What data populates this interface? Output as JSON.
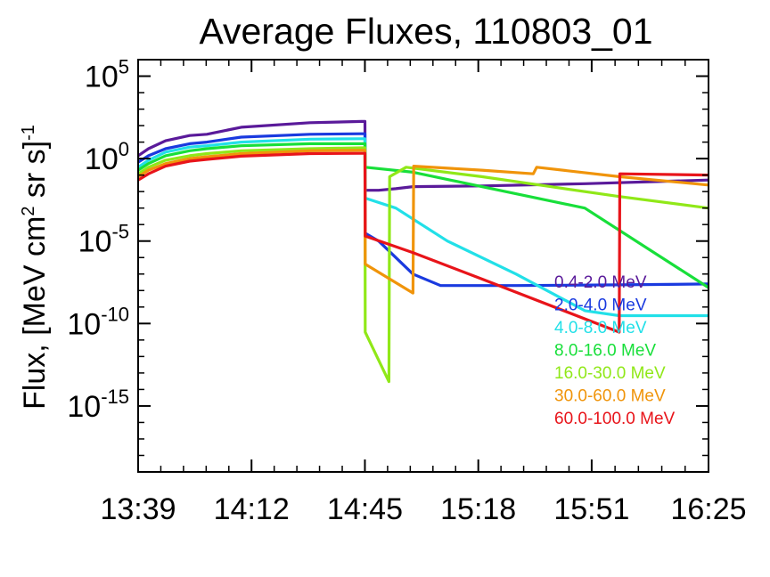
{
  "chart_data": {
    "type": "line",
    "title": "Average Fluxes, 110803_01",
    "ylabel": "Flux, [MeV cm² sr s]⁻¹",
    "ylabel_parts": {
      "main": "Flux, [MeV cm",
      "sup1": "2",
      "mid": " sr s]",
      "sup2": "-1"
    },
    "y_scale": "log",
    "ylim": [
      1e-19,
      1000000.0
    ],
    "x_ticks": [
      {
        "label": "13:39",
        "t": 0
      },
      {
        "label": "14:12",
        "t": 33
      },
      {
        "label": "14:45",
        "t": 66
      },
      {
        "label": "15:18",
        "t": 99
      },
      {
        "label": "15:51",
        "t": 132
      },
      {
        "label": "16:25",
        "t": 166
      }
    ],
    "xlim_minutes": [
      0,
      166
    ],
    "y_ticks": [
      {
        "base": "10",
        "exp": "5",
        "value": 100000.0
      },
      {
        "base": "10",
        "exp": "0",
        "value": 1.0
      },
      {
        "base": "10",
        "exp": "-5",
        "value": 1e-05
      },
      {
        "base": "10",
        "exp": "-10",
        "value": 1e-10
      },
      {
        "base": "10",
        "exp": "-15",
        "value": 1e-15
      }
    ],
    "legend_position": "bottom-right inside",
    "series": [
      {
        "name": "0.4-2.0 MeV",
        "color": "#5a1a9a",
        "points": [
          [
            0,
            1.5
          ],
          [
            3,
            4
          ],
          [
            8,
            12
          ],
          [
            15,
            25
          ],
          [
            20,
            30
          ],
          [
            30,
            80
          ],
          [
            50,
            150
          ],
          [
            65,
            180
          ],
          [
            66,
            180
          ],
          [
            66.1,
            0.012
          ],
          [
            70,
            0.012
          ],
          [
            75,
            0.015
          ],
          [
            80,
            0.02
          ],
          [
            100,
            0.022
          ],
          [
            130,
            0.03
          ],
          [
            166,
            0.05
          ]
        ]
      },
      {
        "name": "2.0-4.0 MeV",
        "color": "#1a3adf",
        "points": [
          [
            0,
            0.6
          ],
          [
            3,
            1.5
          ],
          [
            8,
            4
          ],
          [
            15,
            8
          ],
          [
            20,
            10
          ],
          [
            30,
            20
          ],
          [
            50,
            30
          ],
          [
            65,
            32
          ],
          [
            66,
            32
          ],
          [
            66.1,
            3e-05
          ],
          [
            70,
            1e-05
          ],
          [
            80,
            1e-07
          ],
          [
            88,
            2e-08
          ],
          [
            110,
            2e-08
          ],
          [
            140,
            2.2e-08
          ],
          [
            166,
            2.5e-08
          ]
        ]
      },
      {
        "name": "4.0-8.0 MeV",
        "color": "#22e0e8",
        "points": [
          [
            0,
            0.3
          ],
          [
            3,
            0.8
          ],
          [
            8,
            2.5
          ],
          [
            15,
            5
          ],
          [
            20,
            6
          ],
          [
            30,
            10
          ],
          [
            50,
            15
          ],
          [
            65,
            16
          ],
          [
            66,
            16
          ],
          [
            66.1,
            0.004
          ],
          [
            75,
            0.001
          ],
          [
            90,
            1e-05
          ],
          [
            110,
            1e-07
          ],
          [
            130,
            6e-10
          ],
          [
            140,
            3e-10
          ],
          [
            166,
            3e-10
          ]
        ]
      },
      {
        "name": "8.0-16.0 MeV",
        "color": "#18df3a",
        "points": [
          [
            0,
            0.2
          ],
          [
            3,
            0.5
          ],
          [
            8,
            1.5
          ],
          [
            15,
            3
          ],
          [
            20,
            4
          ],
          [
            30,
            6
          ],
          [
            50,
            8
          ],
          [
            65,
            8
          ],
          [
            66,
            8
          ],
          [
            66.1,
            0.3
          ],
          [
            80,
            0.15
          ],
          [
            100,
            0.02
          ],
          [
            130,
            0.001
          ],
          [
            166,
            1.5e-08
          ]
        ]
      },
      {
        "name": "16.0-30.0 MeV",
        "color": "#90e818",
        "points": [
          [
            0,
            0.12
          ],
          [
            3,
            0.3
          ],
          [
            8,
            0.8
          ],
          [
            15,
            1.5
          ],
          [
            20,
            2
          ],
          [
            30,
            3
          ],
          [
            50,
            4
          ],
          [
            65,
            4.5
          ],
          [
            66,
            4.5
          ],
          [
            66.1,
            3e-11
          ],
          [
            73,
            3e-14
          ],
          [
            73.2,
            0.08
          ],
          [
            78,
            0.3
          ],
          [
            100,
            0.08
          ],
          [
            120,
            0.02
          ],
          [
            140,
            0.005
          ],
          [
            166,
            0.001
          ]
        ]
      },
      {
        "name": "30.0-60.0 MeV",
        "color": "#f0940a",
        "points": [
          [
            0,
            0.08
          ],
          [
            3,
            0.2
          ],
          [
            8,
            0.5
          ],
          [
            15,
            1
          ],
          [
            20,
            1.3
          ],
          [
            30,
            2
          ],
          [
            50,
            3
          ],
          [
            65,
            3.2
          ],
          [
            66,
            3.2
          ],
          [
            66.1,
            4e-07
          ],
          [
            80,
            7e-09
          ],
          [
            80.2,
            0.35
          ],
          [
            100,
            0.2
          ],
          [
            115,
            0.12
          ],
          [
            116,
            0.3
          ],
          [
            140,
            0.08
          ],
          [
            166,
            0.025
          ]
        ]
      },
      {
        "name": "60.0-100.0 MeV",
        "color": "#e8141a",
        "points": [
          [
            0,
            0.05
          ],
          [
            3,
            0.12
          ],
          [
            8,
            0.35
          ],
          [
            15,
            0.7
          ],
          [
            20,
            0.9
          ],
          [
            30,
            1.4
          ],
          [
            50,
            2
          ],
          [
            65,
            2.1
          ],
          [
            66,
            2.1
          ],
          [
            66.1,
            2e-05
          ],
          [
            80,
            2e-06
          ],
          [
            100,
            5e-08
          ],
          [
            140,
            3e-11
          ],
          [
            140.2,
            0.12
          ],
          [
            166,
            0.1
          ]
        ]
      }
    ]
  }
}
